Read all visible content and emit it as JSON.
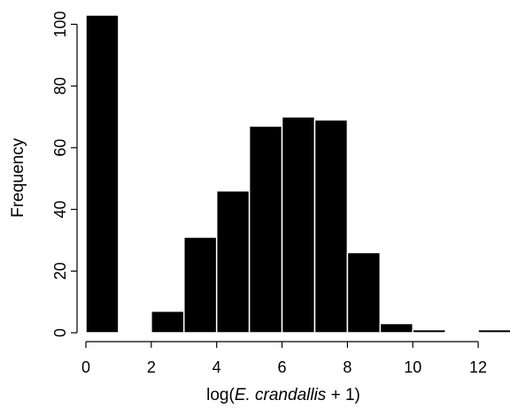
{
  "chart_data": {
    "type": "bar",
    "title": "",
    "xlabel_prefix": "log(",
    "xlabel_italic": "E. crandallis",
    "xlabel_suffix": " + 1)",
    "ylabel": "Frequency",
    "x_ticks": [
      "0",
      "2",
      "4",
      "6",
      "8",
      "10",
      "12"
    ],
    "y_ticks": [
      "0",
      "20",
      "40",
      "60",
      "80",
      "100"
    ],
    "xlim": [
      0,
      13
    ],
    "ylim": [
      0,
      103
    ],
    "grid": false,
    "bar_color": "#000000",
    "bins": [
      {
        "x0": 0,
        "x1": 1,
        "count": 103
      },
      {
        "x0": 1,
        "x1": 2,
        "count": 0
      },
      {
        "x0": 2,
        "x1": 3,
        "count": 7
      },
      {
        "x0": 3,
        "x1": 4,
        "count": 31
      },
      {
        "x0": 4,
        "x1": 5,
        "count": 46
      },
      {
        "x0": 5,
        "x1": 6,
        "count": 67
      },
      {
        "x0": 6,
        "x1": 7,
        "count": 70
      },
      {
        "x0": 7,
        "x1": 8,
        "count": 69
      },
      {
        "x0": 8,
        "x1": 9,
        "count": 26
      },
      {
        "x0": 9,
        "x1": 10,
        "count": 3
      },
      {
        "x0": 10,
        "x1": 11,
        "count": 1
      },
      {
        "x0": 11,
        "x1": 12,
        "count": 0
      },
      {
        "x0": 12,
        "x1": 13,
        "count": 1
      }
    ]
  }
}
